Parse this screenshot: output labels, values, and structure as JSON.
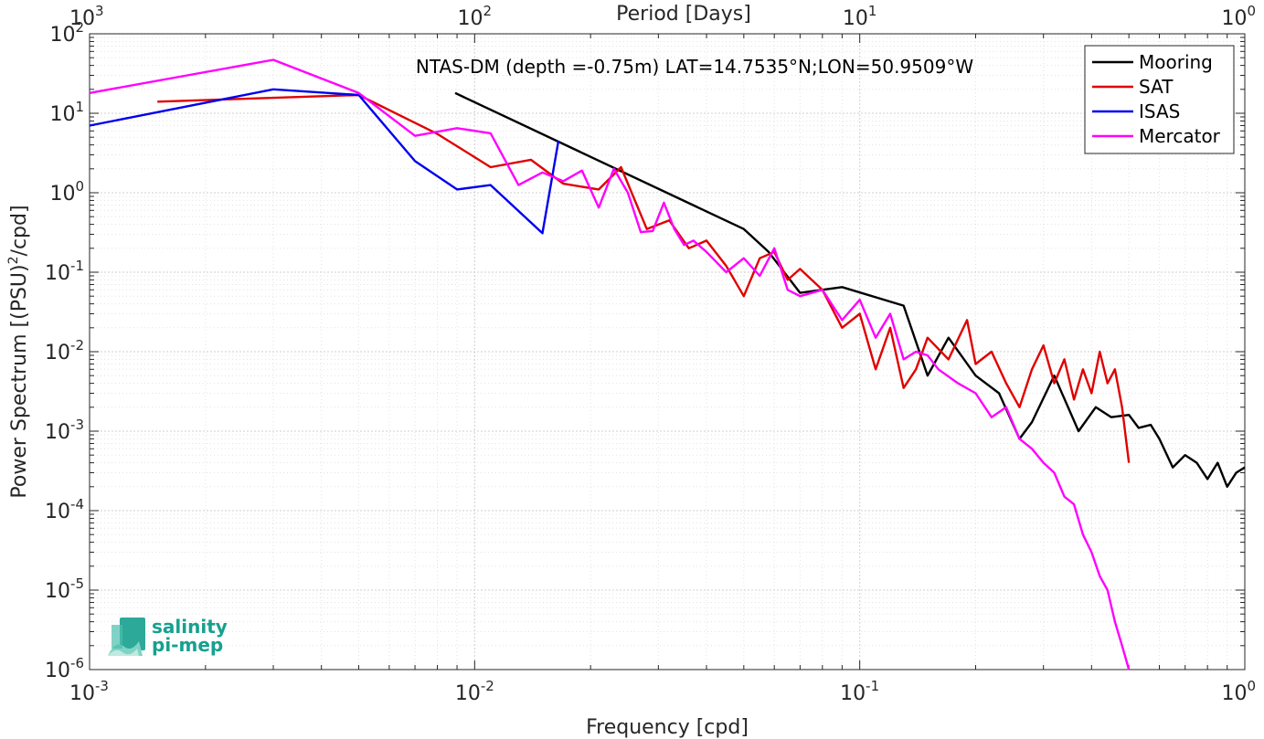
{
  "chart_data": {
    "type": "line",
    "title": "NTAS-DM (depth =-0.75m) LAT=14.7535°N;LON=50.9509°W",
    "xlabel": "Frequency [cpd]",
    "ylabel_main": "Power Spectrum [(PSU)",
    "ylabel_sup": "2",
    "ylabel_tail": "/cpd]",
    "top_xlabel": "Period [Days]",
    "xscale": "log",
    "yscale": "log",
    "xlim": [
      0.001,
      1
    ],
    "ylim": [
      1e-06,
      100
    ],
    "grid": true,
    "legend_position": "top-right",
    "x_ticks": [
      {
        "value": 0.001,
        "base": "10",
        "exp": "-3"
      },
      {
        "value": 0.01,
        "base": "10",
        "exp": "-2"
      },
      {
        "value": 0.1,
        "base": "10",
        "exp": "-1"
      },
      {
        "value": 1,
        "base": "10",
        "exp": "0"
      }
    ],
    "top_ticks": [
      {
        "value": 0.001,
        "base": "10",
        "exp": "3"
      },
      {
        "value": 0.01,
        "base": "10",
        "exp": "2"
      },
      {
        "value": 0.1,
        "base": "10",
        "exp": "1"
      },
      {
        "value": 1,
        "base": "10",
        "exp": "0"
      }
    ],
    "y_ticks": [
      {
        "value": 100,
        "base": "10",
        "exp": "2"
      },
      {
        "value": 10,
        "base": "10",
        "exp": "1"
      },
      {
        "value": 1,
        "base": "10",
        "exp": "0"
      },
      {
        "value": 0.1,
        "base": "10",
        "exp": "-1"
      },
      {
        "value": 0.01,
        "base": "10",
        "exp": "-2"
      },
      {
        "value": 0.001,
        "base": "10",
        "exp": "-3"
      },
      {
        "value": 0.0001,
        "base": "10",
        "exp": "-4"
      },
      {
        "value": 1e-05,
        "base": "10",
        "exp": "-5"
      },
      {
        "value": 1e-06,
        "base": "10",
        "exp": "-6"
      }
    ],
    "series": [
      {
        "name": "Mooring",
        "color": "#000000",
        "x": [
          0.0089,
          0.05,
          0.058,
          0.07,
          0.09,
          0.13,
          0.15,
          0.17,
          0.2,
          0.23,
          0.26,
          0.28,
          0.32,
          0.37,
          0.41,
          0.45,
          0.5,
          0.53,
          0.57,
          0.6,
          0.65,
          0.7,
          0.75,
          0.8,
          0.85,
          0.9,
          0.95,
          1.0
        ],
        "y": [
          18,
          0.35,
          0.18,
          0.055,
          0.065,
          0.038,
          0.005,
          0.015,
          0.005,
          0.003,
          0.0008,
          0.0013,
          0.005,
          0.001,
          0.002,
          0.0015,
          0.0016,
          0.0011,
          0.0012,
          0.0008,
          0.00035,
          0.0005,
          0.0004,
          0.00025,
          0.0004,
          0.0002,
          0.0003,
          0.00035
        ]
      },
      {
        "name": "SAT",
        "color": "#e00000",
        "x": [
          0.0015,
          0.005,
          0.008,
          0.011,
          0.014,
          0.017,
          0.021,
          0.024,
          0.028,
          0.032,
          0.036,
          0.04,
          0.045,
          0.05,
          0.055,
          0.06,
          0.065,
          0.07,
          0.08,
          0.09,
          0.1,
          0.11,
          0.12,
          0.13,
          0.14,
          0.15,
          0.17,
          0.19,
          0.2,
          0.22,
          0.24,
          0.26,
          0.28,
          0.3,
          0.32,
          0.34,
          0.36,
          0.38,
          0.4,
          0.42,
          0.44,
          0.46,
          0.48,
          0.5
        ],
        "y": [
          14,
          17,
          5.5,
          2.1,
          2.6,
          1.3,
          1.1,
          2.1,
          0.35,
          0.45,
          0.2,
          0.25,
          0.12,
          0.05,
          0.15,
          0.18,
          0.08,
          0.11,
          0.06,
          0.02,
          0.03,
          0.006,
          0.02,
          0.0035,
          0.006,
          0.015,
          0.008,
          0.025,
          0.007,
          0.01,
          0.004,
          0.002,
          0.006,
          0.012,
          0.004,
          0.008,
          0.0025,
          0.006,
          0.003,
          0.01,
          0.004,
          0.006,
          0.002,
          0.0004
        ]
      },
      {
        "name": "ISAS",
        "color": "#0000ee",
        "x": [
          0.001,
          0.003,
          0.005,
          0.007,
          0.009,
          0.011,
          0.015,
          0.0165
        ],
        "y": [
          7,
          20,
          17,
          2.5,
          1.1,
          1.25,
          0.31,
          4.5
        ]
      },
      {
        "name": "Mercator",
        "color": "#ff00ff",
        "x": [
          0.001,
          0.003,
          0.005,
          0.007,
          0.009,
          0.011,
          0.013,
          0.015,
          0.017,
          0.019,
          0.021,
          0.023,
          0.025,
          0.027,
          0.029,
          0.031,
          0.033,
          0.035,
          0.037,
          0.04,
          0.045,
          0.05,
          0.055,
          0.06,
          0.065,
          0.07,
          0.08,
          0.09,
          0.1,
          0.11,
          0.12,
          0.13,
          0.14,
          0.15,
          0.16,
          0.18,
          0.2,
          0.22,
          0.24,
          0.26,
          0.28,
          0.3,
          0.32,
          0.34,
          0.36,
          0.38,
          0.4,
          0.42,
          0.44,
          0.46,
          0.48,
          0.5
        ],
        "y": [
          18,
          47,
          18,
          5.2,
          6.5,
          5.6,
          1.25,
          1.8,
          1.4,
          1.9,
          0.65,
          2.0,
          1.0,
          0.32,
          0.33,
          0.75,
          0.35,
          0.22,
          0.25,
          0.18,
          0.1,
          0.15,
          0.09,
          0.2,
          0.06,
          0.05,
          0.06,
          0.025,
          0.045,
          0.015,
          0.03,
          0.008,
          0.01,
          0.009,
          0.006,
          0.004,
          0.003,
          0.0015,
          0.002,
          0.0008,
          0.0006,
          0.0004,
          0.0003,
          0.00015,
          0.00012,
          5e-05,
          3e-05,
          1.5e-05,
          1e-05,
          4e-06,
          2e-06,
          1e-06
        ]
      }
    ]
  },
  "logo": {
    "line1": "salinity",
    "line2": "pi-mep"
  }
}
